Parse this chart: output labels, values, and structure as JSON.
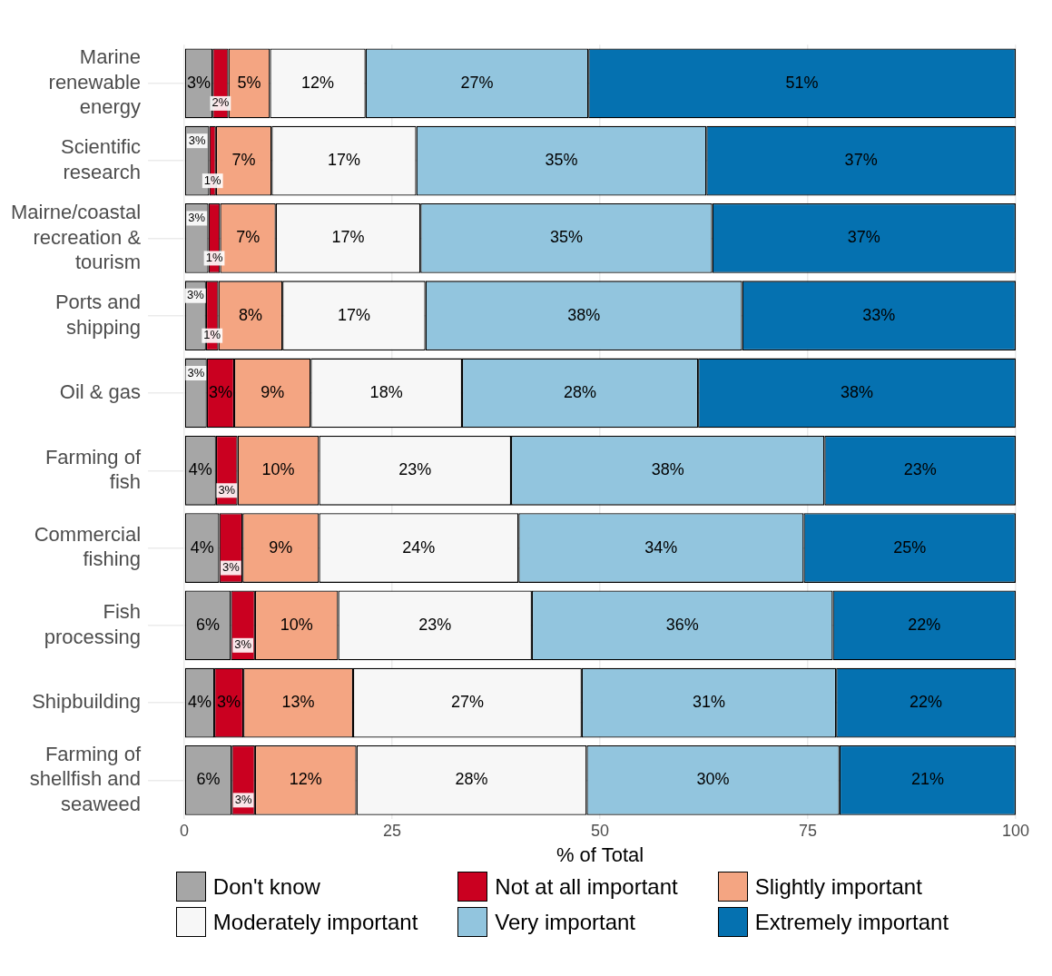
{
  "chart_data": {
    "type": "bar",
    "orientation": "horizontal",
    "stacked": true,
    "xlabel": "% of Total",
    "xlim": [
      0,
      100
    ],
    "xticks": [
      0,
      25,
      50,
      75,
      100
    ],
    "grid": true,
    "legend": "bottom",
    "categories": [
      "Marine renewable energy",
      "Scientific research",
      "Mairne/coastal recreation & tourism",
      "Ports and shipping",
      "Oil & gas",
      "Farming of fish",
      "Commercial fishing",
      "Fish processing",
      "Shipbuilding",
      "Farming of shellfish and seaweed"
    ],
    "series": [
      {
        "name": "Don't know",
        "color": "#a6a6a6",
        "values": [
          3.4,
          3.0,
          2.9,
          2.6,
          2.7,
          3.8,
          4.2,
          5.6,
          3.6,
          5.7
        ],
        "value_labels": [
          "3%",
          "3%",
          "3%",
          "3%",
          "3%",
          "4%",
          "4%",
          "6%",
          "4%",
          "6%"
        ]
      },
      {
        "name": "Not at all important",
        "color": "#ca0020",
        "values": [
          1.9,
          0.8,
          1.4,
          1.5,
          3.3,
          2.6,
          2.8,
          2.9,
          3.5,
          2.8
        ],
        "value_labels": [
          "2%",
          "1%",
          "1%",
          "1%",
          "3%",
          "3%",
          "3%",
          "3%",
          "3%",
          "3%"
        ]
      },
      {
        "name": "Slightly important",
        "color": "#f4a582",
        "values": [
          5.0,
          6.7,
          6.7,
          7.7,
          9.2,
          9.8,
          9.2,
          10.0,
          13.2,
          12.2
        ],
        "value_labels": [
          "5%",
          "7%",
          "7%",
          "8%",
          "9%",
          "10%",
          "9%",
          "10%",
          "13%",
          "12%"
        ]
      },
      {
        "name": "Moderately important",
        "color": "#f7f7f7",
        "values": [
          11.5,
          17.4,
          17.4,
          17.2,
          18.2,
          23.1,
          24.0,
          23.3,
          27.5,
          27.7
        ],
        "value_labels": [
          "12%",
          "17%",
          "17%",
          "17%",
          "18%",
          "23%",
          "24%",
          "23%",
          "27%",
          "28%"
        ]
      },
      {
        "name": "Very important",
        "color": "#92c5de",
        "values": [
          26.8,
          34.9,
          35.1,
          38.1,
          28.4,
          37.7,
          34.3,
          36.2,
          30.6,
          30.4
        ],
        "value_labels": [
          "27%",
          "35%",
          "35%",
          "38%",
          "28%",
          "38%",
          "34%",
          "36%",
          "31%",
          "30%"
        ]
      },
      {
        "name": "Extremely important",
        "color": "#0571b0",
        "values": [
          51.4,
          37.2,
          36.5,
          32.9,
          38.2,
          23.0,
          25.5,
          22.0,
          21.6,
          21.2
        ],
        "value_labels": [
          "51%",
          "37%",
          "37%",
          "33%",
          "38%",
          "23%",
          "25%",
          "22%",
          "22%",
          "21%"
        ]
      }
    ]
  }
}
